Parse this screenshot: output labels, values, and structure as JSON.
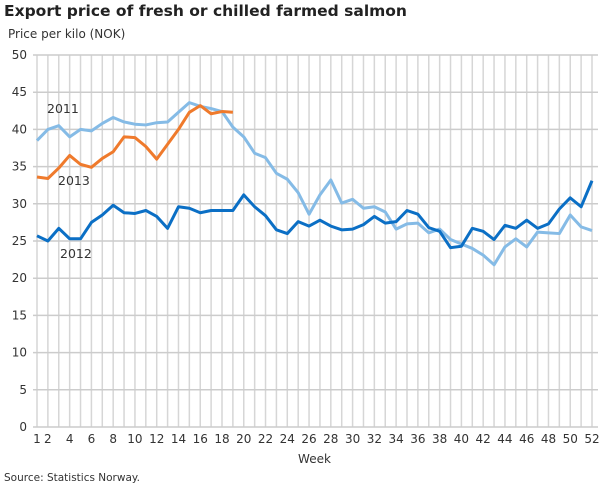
{
  "chart_data": {
    "type": "line",
    "title": "Export price of fresh or chilled farmed salmon",
    "ylabel": "Price per kilo (NOK)",
    "xlabel": "Week",
    "source": "Source: Statistics Norway.",
    "ylim": [
      0,
      50
    ],
    "yticks": [
      0,
      5,
      10,
      15,
      20,
      25,
      30,
      35,
      40,
      45,
      50
    ],
    "xlim": [
      1,
      52
    ],
    "xticks": [
      1,
      2,
      4,
      6,
      8,
      10,
      12,
      14,
      16,
      18,
      20,
      22,
      24,
      26,
      28,
      30,
      32,
      34,
      36,
      38,
      40,
      42,
      44,
      46,
      48,
      50,
      52
    ],
    "grid": true,
    "legend": "inline labels",
    "series": [
      {
        "name": "2011",
        "color": "#85bbe6",
        "values": [
          38.5,
          40,
          40.5,
          39,
          40,
          39.8,
          40.8,
          41.6,
          41,
          40.7,
          40.6,
          40.9,
          41,
          42.3,
          43.6,
          43.1,
          42.8,
          42.4,
          40.3,
          39,
          36.8,
          36.2,
          34.1,
          33.3,
          31.5,
          28.6,
          31.2,
          33.2,
          30.1,
          30.6,
          29.4,
          29.6,
          28.9,
          26.6,
          27.3,
          27.4,
          26.1,
          26.6,
          25.2,
          24.6,
          24.0,
          23.1,
          21.8,
          24.2,
          25.3,
          24.2,
          26.2,
          26.1,
          26.0,
          28.5,
          26.9,
          26.4
        ]
      },
      {
        "name": "2012",
        "color": "#0b6fc5",
        "values": [
          25.7,
          25.0,
          26.7,
          25.3,
          25.3,
          27.5,
          28.5,
          29.8,
          28.8,
          28.7,
          29.1,
          28.3,
          26.7,
          29.6,
          29.4,
          28.8,
          29.1,
          29.1,
          29.1,
          31.2,
          29.6,
          28.4,
          26.5,
          26.0,
          27.6,
          27.0,
          27.8,
          27.0,
          26.5,
          26.6,
          27.2,
          28.3,
          27.4,
          27.6,
          29.1,
          28.6,
          26.8,
          26.3,
          24.1,
          24.3,
          26.7,
          26.3,
          25.2,
          27.1,
          26.7,
          27.8,
          26.7,
          27.3,
          29.3,
          30.8,
          29.6,
          33.1
        ]
      },
      {
        "name": "2013",
        "color": "#ef7a2c",
        "values": [
          33.6,
          33.4,
          34.8,
          36.5,
          35.3,
          34.9,
          36.1,
          37.0,
          39.0,
          38.9,
          37.7,
          36.0,
          38.0,
          40.0,
          42.3,
          43.2,
          42.1,
          42.4,
          42.3
        ]
      }
    ]
  }
}
